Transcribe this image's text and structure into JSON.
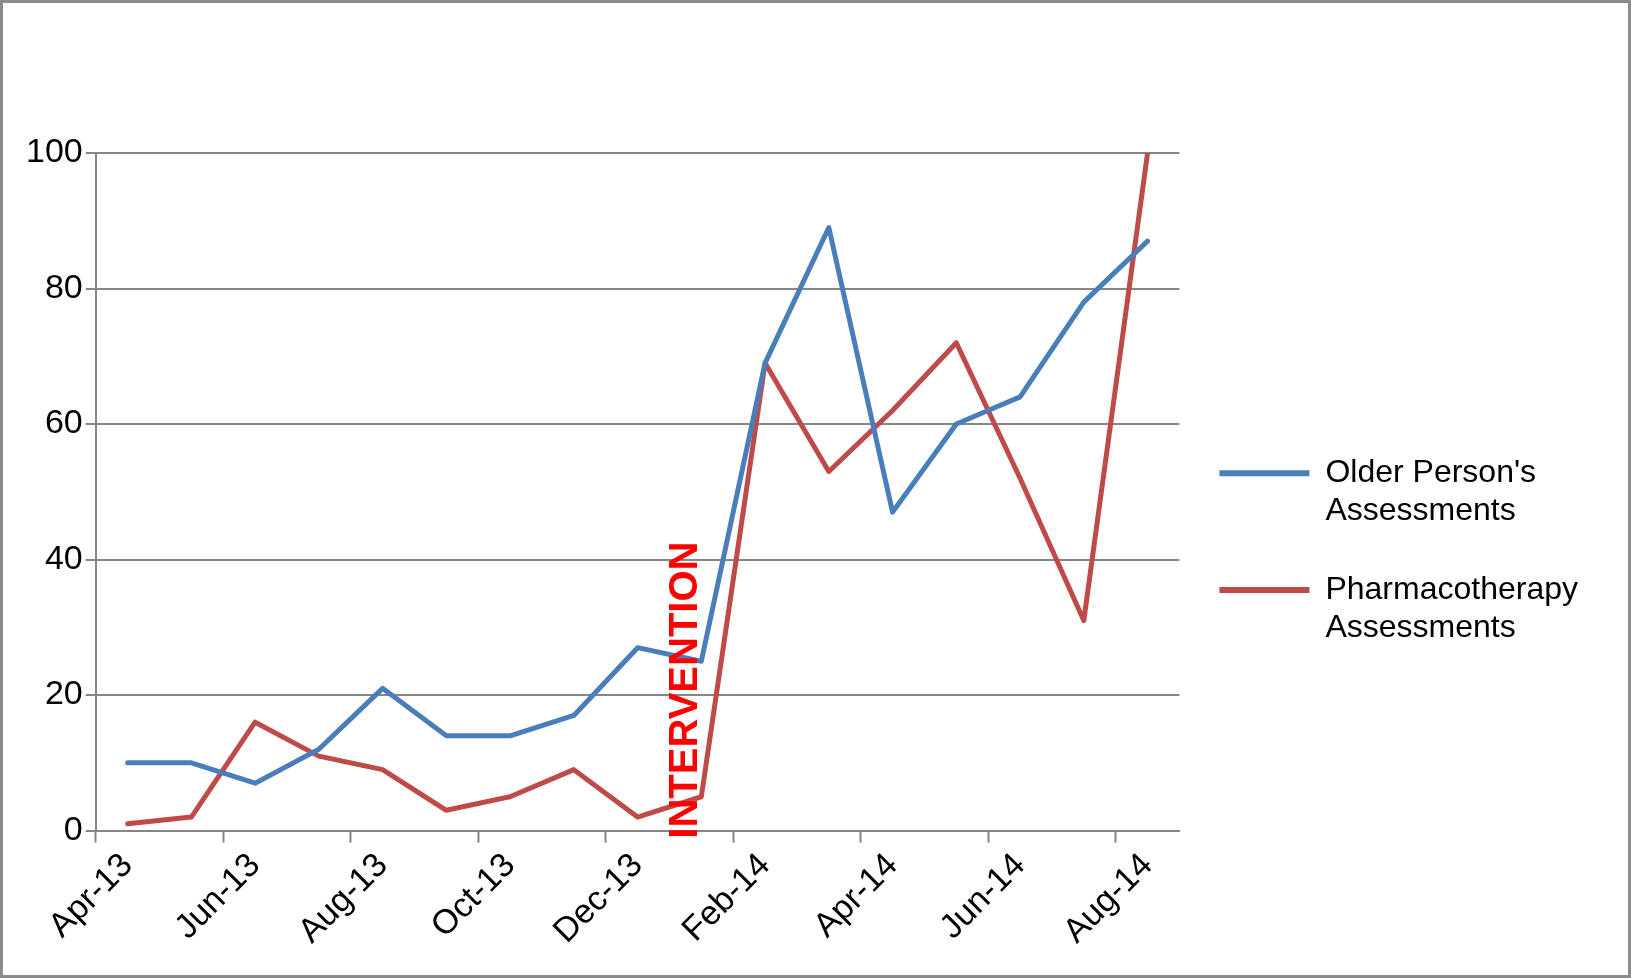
{
  "chart_data": {
    "type": "line",
    "categories": [
      "Apr-13",
      null,
      "Jun-13",
      null,
      "Aug-13",
      null,
      "Oct-13",
      null,
      "Dec-13",
      null,
      "Feb-14",
      null,
      "Apr-14",
      null,
      "Jun-14",
      null,
      "Aug-14"
    ],
    "series": [
      {
        "name": "Older Person's Assessments",
        "color": "#4a7ebb",
        "values": [
          10,
          10,
          7,
          12,
          21,
          14,
          14,
          17,
          27,
          25,
          69,
          89,
          47,
          60,
          64,
          78,
          87
        ]
      },
      {
        "name": "Pharmacotherapy Assessments",
        "color": "#be4b48",
        "values": [
          1,
          2,
          16,
          11,
          9,
          3,
          5,
          9,
          2,
          5,
          69,
          53,
          62,
          72,
          52,
          31,
          100
        ]
      }
    ],
    "ylim": [
      0,
      100
    ],
    "yticks": [
      0,
      20,
      40,
      60,
      80,
      100
    ],
    "grid": "y",
    "legend": "right",
    "marker": "none",
    "line_style": "solid",
    "annotations": [
      "INTERVENTION"
    ]
  }
}
